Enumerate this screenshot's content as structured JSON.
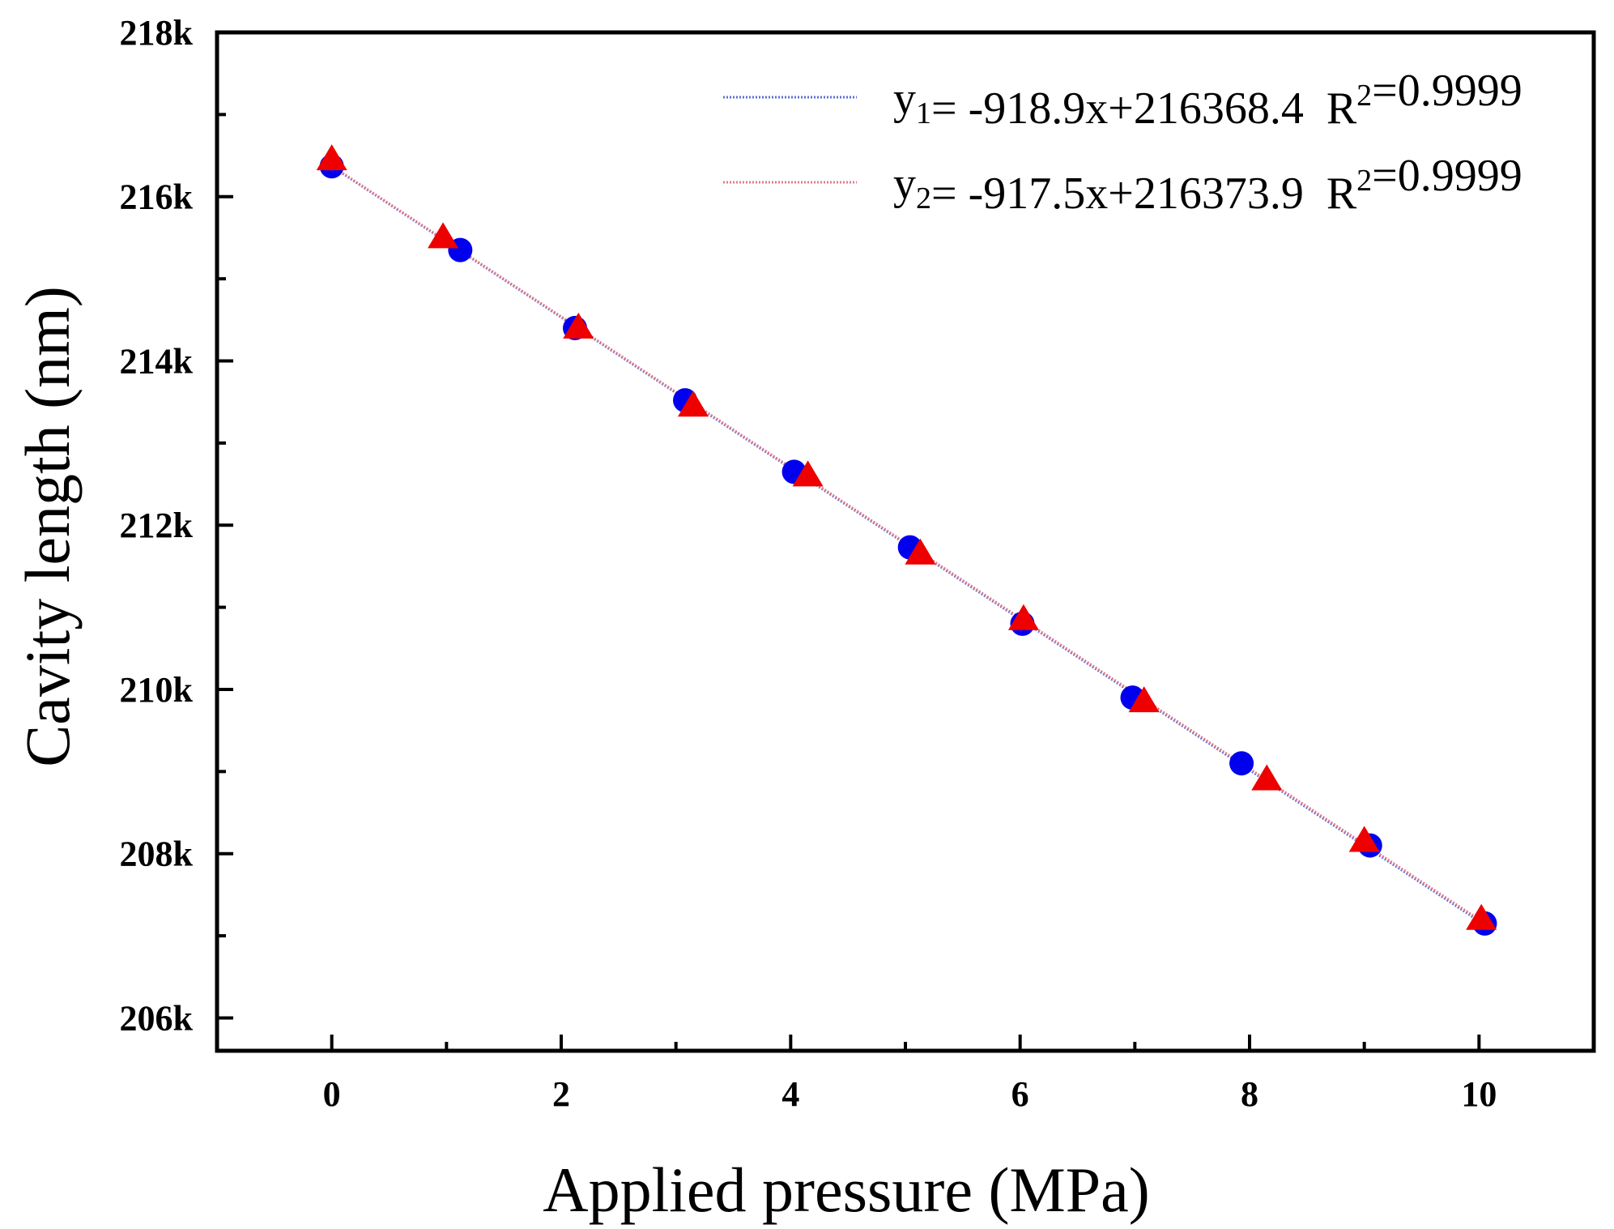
{
  "chart_data": {
    "type": "scatter",
    "title": "",
    "xlabel": "Applied pressure (MPa)",
    "ylabel": "Cavity length (nm)",
    "xlim": [
      -1,
      11
    ],
    "ylim": [
      205600,
      218000
    ],
    "x_ticks": [
      0,
      2,
      4,
      6,
      8,
      10
    ],
    "x_tick_labels": [
      "0",
      "2",
      "4",
      "6",
      "8",
      "10"
    ],
    "y_ticks": [
      206000,
      208000,
      210000,
      212000,
      214000,
      216000,
      218000
    ],
    "y_tick_labels": [
      "206k",
      "208k",
      "210k",
      "212k",
      "214k",
      "216k",
      "218k"
    ],
    "grid": false,
    "legend_position": "top-right",
    "series": [
      {
        "name": "y1",
        "marker": "circle",
        "color": "#0000ee",
        "x": [
          0.0,
          1.12,
          2.12,
          3.08,
          4.03,
          5.04,
          6.02,
          6.98,
          7.93,
          9.05,
          10.05
        ],
        "y": [
          216370,
          215350,
          214400,
          213520,
          212650,
          211730,
          210800,
          209900,
          209100,
          208100,
          207150
        ]
      },
      {
        "name": "y2",
        "marker": "triangle",
        "color": "#ee0000",
        "x": [
          0.0,
          0.97,
          2.15,
          3.15,
          4.15,
          5.13,
          6.03,
          7.08,
          8.15,
          9.0,
          10.02
        ],
        "y": [
          216450,
          215500,
          214400,
          213450,
          212600,
          211650,
          210850,
          209850,
          208900,
          208150,
          207200
        ]
      }
    ],
    "fits": [
      {
        "name": "y1 fit",
        "color": "#5a6fd8",
        "slope": -918.9,
        "intercept": 216368.4,
        "x_range": [
          0,
          10.05
        ],
        "label_main": "y",
        "label_sub": "1",
        "label_eq": "= -918.9x+216368.4",
        "label_r": "R",
        "label_r_sup": "2",
        "label_r_val": "=0.9999"
      },
      {
        "name": "y2 fit",
        "color": "#e07a8a",
        "slope": -917.5,
        "intercept": 216373.9,
        "x_range": [
          0,
          10.05
        ],
        "label_main": "y",
        "label_sub": "2",
        "label_eq": "= -917.5x+216373.9",
        "label_r": "R",
        "label_r_sup": "2",
        "label_r_val": "=0.9999"
      }
    ]
  }
}
